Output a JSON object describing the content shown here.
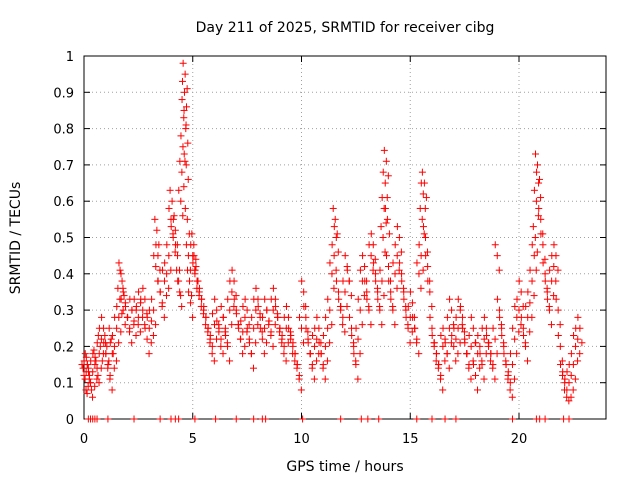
{
  "chart_data": {
    "type": "scatter",
    "title": "Day 211 of 2025, SRMTID for receiver cibg",
    "xlabel": "GPS time / hours",
    "ylabel": "SRMTID / TECUs",
    "xlim": [
      0,
      24
    ],
    "ylim": [
      0,
      1
    ],
    "xticks": [
      0,
      5,
      10,
      15,
      20
    ],
    "xtick_labels": [
      "0",
      "5",
      "10",
      "15",
      "20"
    ],
    "yticks": [
      0,
      0.1,
      0.2,
      0.3,
      0.4,
      0.5,
      0.6,
      0.7,
      0.8,
      0.9,
      1
    ],
    "ytick_labels": [
      "0",
      "0.1",
      "0.2",
      "0.3",
      "0.4",
      "0.5",
      "0.6",
      "0.7",
      "0.8",
      "0.9",
      "1"
    ],
    "grid": true,
    "marker": "+",
    "color": "#ff0000",
    "series": [
      {
        "name": "SRMTID",
        "points": [
          [
            0.0,
            0.12
          ],
          [
            0.05,
            0.11
          ],
          [
            0.1,
            0.13
          ],
          [
            0.15,
            0.15
          ],
          [
            0.2,
            0.14
          ],
          [
            0.25,
            0.12
          ],
          [
            0.3,
            0.1
          ],
          [
            0.4,
            0.13
          ],
          [
            0.5,
            0.15
          ],
          [
            0.55,
            0.16
          ],
          [
            0.6,
            0.14
          ],
          [
            0.7,
            0.18
          ],
          [
            0.75,
            0.2
          ],
          [
            0.8,
            0.22
          ],
          [
            0.9,
            0.25
          ],
          [
            1.0,
            0.18
          ],
          [
            1.05,
            0.2
          ],
          [
            1.1,
            0.15
          ],
          [
            1.2,
            0.12
          ],
          [
            1.25,
            0.22
          ],
          [
            1.3,
            0.18
          ],
          [
            1.4,
            0.2
          ],
          [
            1.5,
            0.25
          ],
          [
            1.6,
            0.28
          ],
          [
            1.65,
            0.33
          ],
          [
            1.7,
            0.4
          ],
          [
            1.75,
            0.38
          ],
          [
            1.8,
            0.3
          ],
          [
            1.9,
            0.32
          ],
          [
            2.0,
            0.28
          ],
          [
            2.1,
            0.25
          ],
          [
            2.2,
            0.3
          ],
          [
            2.3,
            0.27
          ],
          [
            2.4,
            0.3
          ],
          [
            2.5,
            0.28
          ],
          [
            2.6,
            0.32
          ],
          [
            2.7,
            0.3
          ],
          [
            2.8,
            0.33
          ],
          [
            2.9,
            0.22
          ],
          [
            3.0,
            0.25
          ],
          [
            3.1,
            0.27
          ],
          [
            3.2,
            0.3
          ],
          [
            3.3,
            0.42
          ],
          [
            3.35,
            0.52
          ],
          [
            3.4,
            0.45
          ],
          [
            3.5,
            0.35
          ],
          [
            3.6,
            0.32
          ],
          [
            3.7,
            0.38
          ],
          [
            3.8,
            0.4
          ],
          [
            3.9,
            0.45
          ],
          [
            4.0,
            0.55
          ],
          [
            4.05,
            0.6
          ],
          [
            4.1,
            0.5
          ],
          [
            4.2,
            0.52
          ],
          [
            4.3,
            0.45
          ],
          [
            4.35,
            0.38
          ],
          [
            4.4,
            0.35
          ],
          [
            4.45,
            0.6
          ],
          [
            4.5,
            0.68
          ],
          [
            4.55,
            0.75
          ],
          [
            4.6,
            0.85
          ],
          [
            4.62,
            0.9
          ],
          [
            4.65,
            0.95
          ],
          [
            4.68,
            0.8
          ],
          [
            4.7,
            0.7
          ],
          [
            4.75,
            0.55
          ],
          [
            4.8,
            0.45
          ],
          [
            4.85,
            0.38
          ],
          [
            4.9,
            0.32
          ],
          [
            5.0,
            0.45
          ],
          [
            5.05,
            0.48
          ],
          [
            5.1,
            0.4
          ],
          [
            5.15,
            0.42
          ],
          [
            5.2,
            0.38
          ],
          [
            5.3,
            0.35
          ],
          [
            5.4,
            0.33
          ],
          [
            5.5,
            0.3
          ],
          [
            5.6,
            0.28
          ],
          [
            5.7,
            0.25
          ],
          [
            5.8,
            0.22
          ],
          [
            5.9,
            0.2
          ],
          [
            6.0,
            0.26
          ],
          [
            6.1,
            0.3
          ],
          [
            6.2,
            0.24
          ],
          [
            6.3,
            0.22
          ],
          [
            6.4,
            0.28
          ],
          [
            6.5,
            0.25
          ],
          [
            6.6,
            0.2
          ],
          [
            6.7,
            0.3
          ],
          [
            6.8,
            0.35
          ],
          [
            6.9,
            0.38
          ],
          [
            7.0,
            0.3
          ],
          [
            7.1,
            0.26
          ],
          [
            7.2,
            0.22
          ],
          [
            7.3,
            0.24
          ],
          [
            7.4,
            0.28
          ],
          [
            7.5,
            0.3
          ],
          [
            7.6,
            0.22
          ],
          [
            7.7,
            0.18
          ],
          [
            7.8,
            0.25
          ],
          [
            7.9,
            0.3
          ],
          [
            8.0,
            0.33
          ],
          [
            8.1,
            0.28
          ],
          [
            8.2,
            0.22
          ],
          [
            8.3,
            0.25
          ],
          [
            8.4,
            0.3
          ],
          [
            8.5,
            0.27
          ],
          [
            8.6,
            0.24
          ],
          [
            8.7,
            0.3
          ],
          [
            8.8,
            0.33
          ],
          [
            8.9,
            0.28
          ],
          [
            9.0,
            0.25
          ],
          [
            9.1,
            0.22
          ],
          [
            9.2,
            0.2
          ],
          [
            9.3,
            0.25
          ],
          [
            9.4,
            0.28
          ],
          [
            9.5,
            0.22
          ],
          [
            9.6,
            0.2
          ],
          [
            9.7,
            0.18
          ],
          [
            9.8,
            0.15
          ],
          [
            9.9,
            0.12
          ],
          [
            10.0,
            0.25
          ],
          [
            10.1,
            0.35
          ],
          [
            10.2,
            0.28
          ],
          [
            10.3,
            0.22
          ],
          [
            10.4,
            0.18
          ],
          [
            10.5,
            0.15
          ],
          [
            10.6,
            0.2
          ],
          [
            10.7,
            0.22
          ],
          [
            10.8,
            0.25
          ],
          [
            10.9,
            0.18
          ],
          [
            11.0,
            0.15
          ],
          [
            11.1,
            0.2
          ],
          [
            11.2,
            0.25
          ],
          [
            11.3,
            0.3
          ],
          [
            11.4,
            0.4
          ],
          [
            11.5,
            0.45
          ],
          [
            11.55,
            0.55
          ],
          [
            11.6,
            0.5
          ],
          [
            11.7,
            0.35
          ],
          [
            11.8,
            0.3
          ],
          [
            11.9,
            0.28
          ],
          [
            12.0,
            0.35
          ],
          [
            12.1,
            0.42
          ],
          [
            12.2,
            0.38
          ],
          [
            12.3,
            0.25
          ],
          [
            12.4,
            0.2
          ],
          [
            12.5,
            0.15
          ],
          [
            12.6,
            0.22
          ],
          [
            12.7,
            0.3
          ],
          [
            12.8,
            0.38
          ],
          [
            12.9,
            0.42
          ],
          [
            13.0,
            0.35
          ],
          [
            13.1,
            0.3
          ],
          [
            13.2,
            0.45
          ],
          [
            13.3,
            0.48
          ],
          [
            13.4,
            0.4
          ],
          [
            13.5,
            0.35
          ],
          [
            13.6,
            0.3
          ],
          [
            13.7,
            0.38
          ],
          [
            13.75,
            0.5
          ],
          [
            13.8,
            0.58
          ],
          [
            13.85,
            0.65
          ],
          [
            13.9,
            0.71
          ],
          [
            13.95,
            0.55
          ],
          [
            14.0,
            0.42
          ],
          [
            14.1,
            0.35
          ],
          [
            14.2,
            0.3
          ],
          [
            14.3,
            0.4
          ],
          [
            14.4,
            0.45
          ],
          [
            14.5,
            0.5
          ],
          [
            14.6,
            0.4
          ],
          [
            14.7,
            0.35
          ],
          [
            14.8,
            0.3
          ],
          [
            14.9,
            0.25
          ],
          [
            15.0,
            0.28
          ],
          [
            15.1,
            0.32
          ],
          [
            15.2,
            0.25
          ],
          [
            15.3,
            0.22
          ],
          [
            15.4,
            0.4
          ],
          [
            15.5,
            0.45
          ],
          [
            15.55,
            0.55
          ],
          [
            15.6,
            0.62
          ],
          [
            15.65,
            0.65
          ],
          [
            15.7,
            0.5
          ],
          [
            15.8,
            0.42
          ],
          [
            15.9,
            0.35
          ],
          [
            16.0,
            0.25
          ],
          [
            16.1,
            0.2
          ],
          [
            16.2,
            0.18
          ],
          [
            16.3,
            0.15
          ],
          [
            16.4,
            0.12
          ],
          [
            16.5,
            0.2
          ],
          [
            16.6,
            0.22
          ],
          [
            16.7,
            0.18
          ],
          [
            16.8,
            0.25
          ],
          [
            16.9,
            0.3
          ],
          [
            17.0,
            0.2
          ],
          [
            17.1,
            0.22
          ],
          [
            17.2,
            0.25
          ],
          [
            17.3,
            0.3
          ],
          [
            17.4,
            0.28
          ],
          [
            17.5,
            0.22
          ],
          [
            17.6,
            0.18
          ],
          [
            17.7,
            0.15
          ],
          [
            17.8,
            0.2
          ],
          [
            17.9,
            0.25
          ],
          [
            18.0,
            0.12
          ],
          [
            18.1,
            0.18
          ],
          [
            18.2,
            0.2
          ],
          [
            18.3,
            0.15
          ],
          [
            18.4,
            0.22
          ],
          [
            18.5,
            0.25
          ],
          [
            18.6,
            0.2
          ],
          [
            18.7,
            0.18
          ],
          [
            18.8,
            0.15
          ],
          [
            18.9,
            0.22
          ],
          [
            19.0,
            0.45
          ],
          [
            19.1,
            0.3
          ],
          [
            19.2,
            0.25
          ],
          [
            19.3,
            0.2
          ],
          [
            19.4,
            0.15
          ],
          [
            19.5,
            0.12
          ],
          [
            19.6,
            0.1
          ],
          [
            19.7,
            0.15
          ],
          [
            19.8,
            0.22
          ],
          [
            19.9,
            0.28
          ],
          [
            20.0,
            0.3
          ],
          [
            20.1,
            0.35
          ],
          [
            20.2,
            0.25
          ],
          [
            20.3,
            0.2
          ],
          [
            20.4,
            0.28
          ],
          [
            20.5,
            0.32
          ],
          [
            20.6,
            0.38
          ],
          [
            20.7,
            0.45
          ],
          [
            20.75,
            0.5
          ],
          [
            20.8,
            0.6
          ],
          [
            20.85,
            0.7
          ],
          [
            20.9,
            0.65
          ],
          [
            21.0,
            0.55
          ],
          [
            21.1,
            0.48
          ],
          [
            21.2,
            0.4
          ],
          [
            21.3,
            0.35
          ],
          [
            21.4,
            0.3
          ],
          [
            21.5,
            0.38
          ],
          [
            21.6,
            0.42
          ],
          [
            21.7,
            0.45
          ],
          [
            21.8,
            0.3
          ],
          [
            21.9,
            0.2
          ],
          [
            22.0,
            0.12
          ],
          [
            22.1,
            0.1
          ],
          [
            22.2,
            0.08
          ],
          [
            22.3,
            0.1
          ],
          [
            22.4,
            0.12
          ],
          [
            22.5,
            0.15
          ],
          [
            22.6,
            0.2
          ],
          [
            22.7,
            0.22
          ],
          [
            22.8,
            0.25
          ]
        ]
      }
    ],
    "zero_points_x": [
      0.2,
      0.3,
      0.4,
      0.5,
      0.6,
      1.1,
      2.3,
      3.5,
      4.0,
      4.2,
      4.35,
      5.1,
      6.05,
      7.0,
      7.8,
      8.2,
      8.35,
      10.05,
      11.8,
      12.75,
      13.05,
      13.55,
      15.3,
      16.0,
      16.6,
      17.1,
      19.7,
      20.8,
      20.95,
      21.2,
      22.05,
      22.3
    ]
  }
}
